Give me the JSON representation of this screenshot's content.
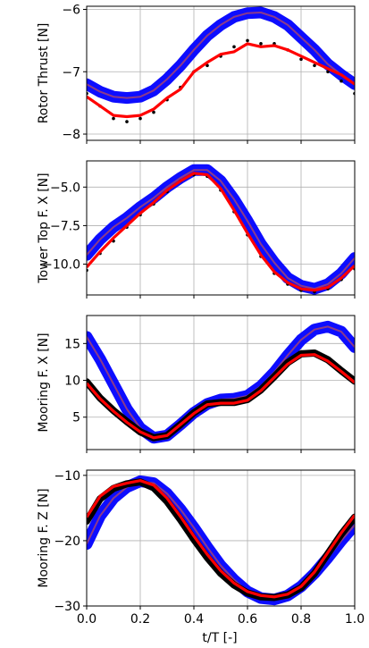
{
  "figure": {
    "xlabel": "t/T [-]"
  },
  "chart_data": [
    {
      "type": "line",
      "ylabel": "Rotor Thrust [N]",
      "xlim": [
        0.0,
        1.0
      ],
      "ylim": [
        -8.1,
        -5.95
      ],
      "yticks": [
        -8,
        -7,
        -6
      ],
      "xticks": [
        0.0,
        0.2,
        0.4,
        0.6,
        0.8,
        1.0
      ],
      "grid": true,
      "series": [
        {
          "style": "band",
          "color": "#0000ff",
          "x": [
            0.0,
            0.05,
            0.1,
            0.15,
            0.2,
            0.25,
            0.3,
            0.35,
            0.4,
            0.45,
            0.5,
            0.55,
            0.6,
            0.65,
            0.7,
            0.75,
            0.8,
            0.85,
            0.9,
            0.95,
            1.0
          ],
          "y": [
            -7.2,
            -7.32,
            -7.4,
            -7.42,
            -7.4,
            -7.3,
            -7.12,
            -6.9,
            -6.65,
            -6.42,
            -6.25,
            -6.12,
            -6.06,
            -6.05,
            -6.12,
            -6.25,
            -6.45,
            -6.65,
            -6.88,
            -7.05,
            -7.2
          ]
        },
        {
          "style": "line",
          "color": "#8b3a8b",
          "x": [
            0.0,
            0.05,
            0.1,
            0.15,
            0.2,
            0.25,
            0.3,
            0.35,
            0.4,
            0.45,
            0.5,
            0.55,
            0.6,
            0.65,
            0.7,
            0.75,
            0.8,
            0.85,
            0.9,
            0.95,
            1.0
          ],
          "y": [
            -7.2,
            -7.32,
            -7.4,
            -7.42,
            -7.4,
            -7.3,
            -7.12,
            -6.9,
            -6.65,
            -6.42,
            -6.25,
            -6.12,
            -6.06,
            -6.05,
            -6.12,
            -6.25,
            -6.45,
            -6.65,
            -6.88,
            -7.05,
            -7.2
          ]
        },
        {
          "style": "scatter",
          "color": "#000000",
          "x": [
            0.0,
            0.05,
            0.1,
            0.15,
            0.2,
            0.25,
            0.3,
            0.35,
            0.4,
            0.45,
            0.5,
            0.55,
            0.6,
            0.65,
            0.7,
            0.75,
            0.8,
            0.85,
            0.9,
            0.95,
            1.0
          ],
          "y": [
            -7.35,
            -7.55,
            -7.75,
            -7.8,
            -7.75,
            -7.65,
            -7.45,
            -7.25,
            -7.0,
            -6.9,
            -6.75,
            -6.6,
            -6.5,
            -6.55,
            -6.55,
            -6.65,
            -6.8,
            -6.9,
            -7.0,
            -7.15,
            -7.35
          ]
        },
        {
          "style": "line",
          "color": "#ff0000",
          "x": [
            0.0,
            0.05,
            0.1,
            0.15,
            0.2,
            0.25,
            0.3,
            0.35,
            0.4,
            0.45,
            0.5,
            0.55,
            0.6,
            0.65,
            0.7,
            0.75,
            0.8,
            0.85,
            0.9,
            0.95,
            1.0
          ],
          "y": [
            -7.4,
            -7.55,
            -7.7,
            -7.72,
            -7.7,
            -7.6,
            -7.42,
            -7.28,
            -7.0,
            -6.85,
            -6.72,
            -6.68,
            -6.55,
            -6.6,
            -6.58,
            -6.65,
            -6.75,
            -6.85,
            -6.95,
            -7.05,
            -7.2
          ]
        }
      ]
    },
    {
      "type": "line",
      "ylabel": "Tower Top F. X [N]",
      "xlim": [
        0.0,
        1.0
      ],
      "ylim": [
        -12.0,
        -3.3
      ],
      "yticks": [
        -10.0,
        -7.5,
        -5.0
      ],
      "xticks": [
        0.0,
        0.2,
        0.4,
        0.6,
        0.8,
        1.0
      ],
      "grid": true,
      "series": [
        {
          "style": "band",
          "color": "#0000ff",
          "x": [
            0.0,
            0.05,
            0.1,
            0.15,
            0.2,
            0.25,
            0.3,
            0.35,
            0.4,
            0.45,
            0.5,
            0.55,
            0.6,
            0.65,
            0.7,
            0.75,
            0.8,
            0.85,
            0.9,
            0.95,
            1.0
          ],
          "y": [
            -9.4,
            -8.4,
            -7.6,
            -7.0,
            -6.3,
            -5.7,
            -5.0,
            -4.4,
            -3.9,
            -3.9,
            -4.6,
            -5.8,
            -7.2,
            -8.7,
            -9.9,
            -10.9,
            -11.4,
            -11.6,
            -11.3,
            -10.6,
            -9.6
          ]
        },
        {
          "style": "line",
          "color": "#8b3a8b",
          "x": [
            0.0,
            0.05,
            0.1,
            0.15,
            0.2,
            0.25,
            0.3,
            0.35,
            0.4,
            0.45,
            0.5,
            0.55,
            0.6,
            0.65,
            0.7,
            0.75,
            0.8,
            0.85,
            0.9,
            0.95,
            1.0
          ],
          "y": [
            -9.4,
            -8.4,
            -7.6,
            -7.0,
            -6.3,
            -5.7,
            -5.0,
            -4.4,
            -3.9,
            -3.9,
            -4.6,
            -5.8,
            -7.2,
            -8.7,
            -9.9,
            -10.9,
            -11.4,
            -11.6,
            -11.3,
            -10.6,
            -9.6
          ]
        },
        {
          "style": "scatter",
          "color": "#000000",
          "x": [
            0.0,
            0.05,
            0.1,
            0.15,
            0.2,
            0.25,
            0.3,
            0.35,
            0.4,
            0.45,
            0.5,
            0.55,
            0.6,
            0.65,
            0.7,
            0.75,
            0.8,
            0.85,
            0.9,
            0.95,
            1.0
          ],
          "y": [
            -10.4,
            -9.3,
            -8.5,
            -7.6,
            -6.8,
            -6.1,
            -5.3,
            -4.6,
            -4.2,
            -4.3,
            -5.2,
            -6.6,
            -8.1,
            -9.5,
            -10.6,
            -11.3,
            -11.7,
            -11.8,
            -11.6,
            -11.0,
            -10.3
          ]
        },
        {
          "style": "line",
          "color": "#ff0000",
          "x": [
            0.0,
            0.05,
            0.1,
            0.15,
            0.2,
            0.25,
            0.3,
            0.35,
            0.4,
            0.45,
            0.5,
            0.55,
            0.6,
            0.65,
            0.7,
            0.75,
            0.8,
            0.85,
            0.9,
            0.95,
            1.0
          ],
          "y": [
            -10.2,
            -9.2,
            -8.3,
            -7.5,
            -6.7,
            -6.0,
            -5.2,
            -4.6,
            -4.1,
            -4.2,
            -5.1,
            -6.5,
            -8.0,
            -9.4,
            -10.5,
            -11.2,
            -11.6,
            -11.7,
            -11.5,
            -10.9,
            -10.1
          ]
        }
      ]
    },
    {
      "type": "line",
      "ylabel": "Mooring F. X [N]",
      "xlim": [
        0.0,
        1.0
      ],
      "ylim": [
        0.6,
        18.8
      ],
      "yticks": [
        5,
        10,
        15
      ],
      "xticks": [
        0.0,
        0.2,
        0.4,
        0.6,
        0.8,
        1.0
      ],
      "grid": true,
      "series": [
        {
          "style": "band",
          "color": "#0000ff",
          "x": [
            0.0,
            0.05,
            0.1,
            0.15,
            0.2,
            0.25,
            0.3,
            0.35,
            0.4,
            0.45,
            0.5,
            0.55,
            0.6,
            0.65,
            0.7,
            0.75,
            0.8,
            0.85,
            0.9,
            0.95,
            1.0
          ],
          "y": [
            15.9,
            12.9,
            9.5,
            6.1,
            3.5,
            2.2,
            2.5,
            4.0,
            5.6,
            6.8,
            7.4,
            7.5,
            7.9,
            9.2,
            11.1,
            13.4,
            15.5,
            16.9,
            17.3,
            16.6,
            14.5
          ]
        },
        {
          "style": "line",
          "color": "#8b3a8b",
          "x": [
            0.0,
            0.05,
            0.1,
            0.15,
            0.2,
            0.25,
            0.3,
            0.35,
            0.4,
            0.45,
            0.5,
            0.55,
            0.6,
            0.65,
            0.7,
            0.75,
            0.8,
            0.85,
            0.9,
            0.95,
            1.0
          ],
          "y": [
            15.9,
            12.9,
            9.5,
            6.1,
            3.5,
            2.2,
            2.5,
            4.0,
            5.6,
            6.8,
            7.4,
            7.5,
            7.9,
            9.2,
            11.1,
            13.4,
            15.5,
            16.9,
            17.3,
            16.6,
            14.5
          ]
        },
        {
          "style": "thick",
          "color": "#000000",
          "x": [
            0.0,
            0.05,
            0.1,
            0.15,
            0.2,
            0.25,
            0.3,
            0.35,
            0.4,
            0.45,
            0.5,
            0.55,
            0.6,
            0.65,
            0.7,
            0.75,
            0.8,
            0.85,
            0.9,
            0.95,
            1.0
          ],
          "y": [
            9.8,
            7.6,
            5.9,
            4.4,
            3.0,
            2.2,
            2.5,
            4.0,
            5.6,
            6.8,
            7.0,
            7.0,
            7.4,
            8.7,
            10.5,
            12.4,
            13.6,
            13.7,
            12.8,
            11.3,
            9.9
          ]
        },
        {
          "style": "line",
          "color": "#ff0000",
          "x": [
            0.0,
            0.05,
            0.1,
            0.15,
            0.2,
            0.25,
            0.3,
            0.35,
            0.4,
            0.45,
            0.5,
            0.55,
            0.6,
            0.65,
            0.7,
            0.75,
            0.8,
            0.85,
            0.9,
            0.95,
            1.0
          ],
          "y": [
            9.6,
            7.5,
            5.8,
            4.3,
            3.0,
            2.2,
            2.5,
            4.0,
            5.5,
            6.7,
            6.9,
            6.9,
            7.3,
            8.6,
            10.4,
            12.2,
            13.4,
            13.5,
            12.6,
            11.2,
            9.7
          ]
        }
      ]
    },
    {
      "type": "line",
      "ylabel": "Mooring F. Z [N]",
      "xlim": [
        0.0,
        1.0
      ],
      "ylim": [
        -30.0,
        -9.2
      ],
      "yticks": [
        -30,
        -20,
        -10
      ],
      "xticks": [
        0.0,
        0.2,
        0.4,
        0.6,
        0.8,
        1.0
      ],
      "grid": true,
      "series": [
        {
          "style": "band",
          "color": "#0000ff",
          "x": [
            0.0,
            0.05,
            0.1,
            0.15,
            0.2,
            0.25,
            0.3,
            0.35,
            0.4,
            0.45,
            0.5,
            0.55,
            0.6,
            0.65,
            0.7,
            0.75,
            0.8,
            0.85,
            0.9,
            0.95,
            1.0
          ],
          "y": [
            -20.5,
            -16.2,
            -13.5,
            -11.8,
            -10.9,
            -11.2,
            -12.8,
            -15.2,
            -18.0,
            -21.0,
            -23.8,
            -26.0,
            -27.8,
            -28.8,
            -29.0,
            -28.4,
            -27.0,
            -25.0,
            -22.6,
            -20.0,
            -17.6
          ]
        },
        {
          "style": "line",
          "color": "#8b3a8b",
          "x": [
            0.0,
            0.05,
            0.1,
            0.15,
            0.2,
            0.25,
            0.3,
            0.35,
            0.4,
            0.45,
            0.5,
            0.55,
            0.6,
            0.65,
            0.7,
            0.75,
            0.8,
            0.85,
            0.9,
            0.95,
            1.0
          ],
          "y": [
            -20.5,
            -16.2,
            -13.5,
            -11.8,
            -10.9,
            -11.2,
            -12.8,
            -15.2,
            -18.0,
            -21.0,
            -23.8,
            -26.0,
            -27.8,
            -28.8,
            -29.0,
            -28.4,
            -27.0,
            -25.0,
            -22.6,
            -20.0,
            -17.6
          ]
        },
        {
          "style": "thick",
          "color": "#000000",
          "x": [
            0.0,
            0.05,
            0.1,
            0.15,
            0.2,
            0.25,
            0.3,
            0.35,
            0.4,
            0.45,
            0.5,
            0.55,
            0.6,
            0.65,
            0.7,
            0.75,
            0.8,
            0.85,
            0.9,
            0.95,
            1.0
          ],
          "y": [
            -17.0,
            -13.6,
            -12.0,
            -11.3,
            -11.0,
            -11.9,
            -14.0,
            -16.8,
            -19.8,
            -22.6,
            -25.0,
            -26.8,
            -28.0,
            -28.6,
            -28.7,
            -28.3,
            -27.2,
            -25.0,
            -22.0,
            -19.0,
            -16.4
          ]
        },
        {
          "style": "line",
          "color": "#ff0000",
          "x": [
            0.0,
            0.05,
            0.1,
            0.15,
            0.2,
            0.25,
            0.3,
            0.35,
            0.4,
            0.45,
            0.5,
            0.55,
            0.6,
            0.65,
            0.7,
            0.75,
            0.8,
            0.85,
            0.9,
            0.95,
            1.0
          ],
          "y": [
            -16.4,
            -13.2,
            -11.7,
            -11.2,
            -10.8,
            -11.5,
            -13.5,
            -16.3,
            -19.3,
            -22.1,
            -24.6,
            -26.5,
            -27.8,
            -28.4,
            -28.6,
            -28.2,
            -27.0,
            -24.8,
            -21.8,
            -18.8,
            -16.1
          ]
        }
      ]
    }
  ]
}
